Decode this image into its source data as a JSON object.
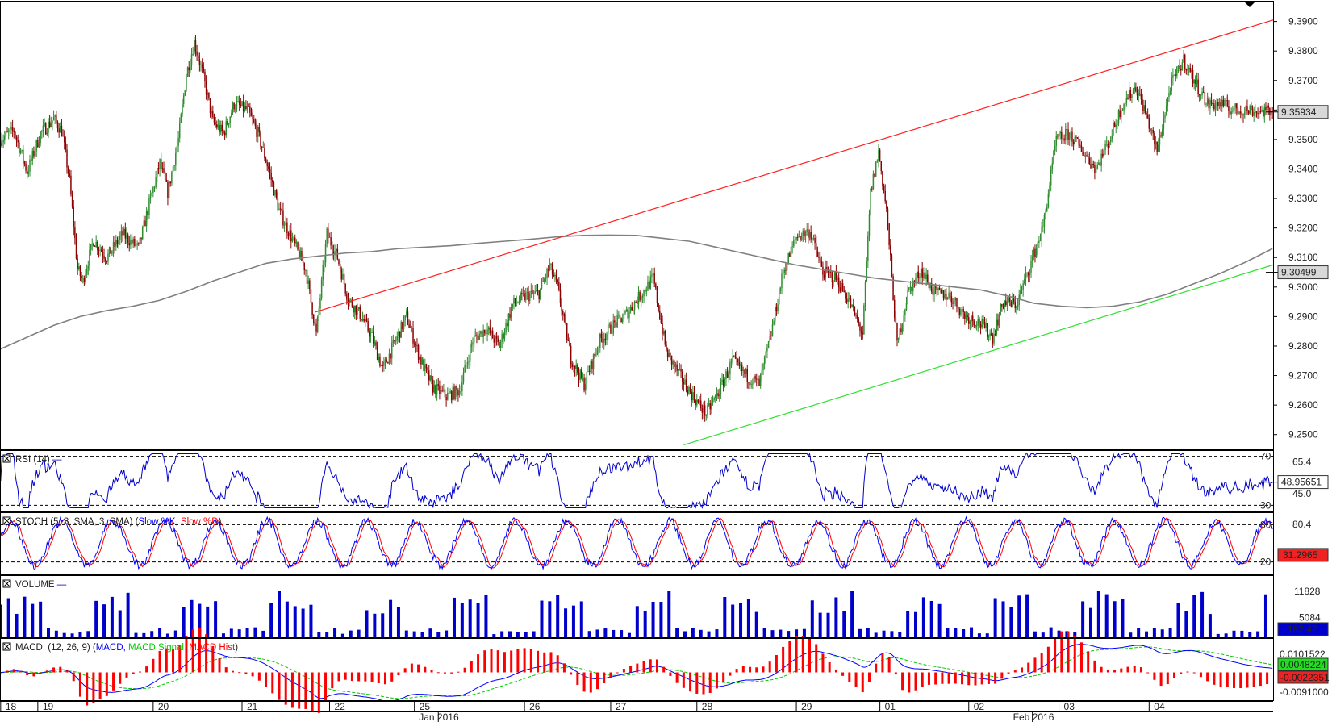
{
  "chart_data": [
    {
      "type": "candlestick",
      "panel": "price",
      "ylim": [
        9.245,
        9.397
      ],
      "y_ticks": [
        "9.3900",
        "9.3800",
        "9.3700",
        "9.3600",
        "9.3500",
        "9.3400",
        "9.3300",
        "9.3200",
        "9.3100",
        "9.3000",
        "9.2900",
        "9.2800",
        "9.2700",
        "9.2600",
        "9.2500"
      ],
      "last_price_label": "9.35934",
      "last_price": 9.35934,
      "ma_label": "9.30499",
      "ma_value": 9.30499,
      "ma_series": [
        [
          0,
          9.279
        ],
        [
          20,
          9.283
        ],
        [
          40,
          9.287
        ],
        [
          60,
          9.29
        ],
        [
          80,
          9.292
        ],
        [
          100,
          9.2935
        ],
        [
          120,
          9.2955
        ],
        [
          140,
          9.2985
        ],
        [
          160,
          9.302
        ],
        [
          180,
          9.305
        ],
        [
          200,
          9.308
        ],
        [
          220,
          9.3095
        ],
        [
          240,
          9.3105
        ],
        [
          260,
          9.3115
        ],
        [
          280,
          9.312
        ],
        [
          300,
          9.313
        ],
        [
          320,
          9.3135
        ],
        [
          340,
          9.314
        ],
        [
          360,
          9.3148
        ],
        [
          380,
          9.3155
        ],
        [
          400,
          9.3162
        ],
        [
          420,
          9.317
        ],
        [
          440,
          9.3175
        ],
        [
          460,
          9.3176
        ],
        [
          480,
          9.3175
        ],
        [
          500,
          9.3165
        ],
        [
          520,
          9.3155
        ],
        [
          540,
          9.3135
        ],
        [
          560,
          9.3115
        ],
        [
          580,
          9.3095
        ],
        [
          600,
          9.3075
        ],
        [
          620,
          9.306
        ],
        [
          640,
          9.3045
        ],
        [
          660,
          9.303
        ],
        [
          680,
          9.302
        ],
        [
          700,
          9.301
        ],
        [
          720,
          9.3
        ],
        [
          740,
          9.299
        ],
        [
          760,
          9.297
        ],
        [
          780,
          9.2945
        ],
        [
          800,
          9.2935
        ],
        [
          820,
          9.293
        ],
        [
          840,
          9.2935
        ],
        [
          860,
          9.295
        ],
        [
          880,
          9.2975
        ],
        [
          900,
          9.301
        ],
        [
          920,
          9.3045
        ],
        [
          940,
          9.3085
        ],
        [
          960,
          9.313
        ]
      ],
      "resistance_line": [
        [
          237,
          9.2915
        ],
        [
          960,
          9.3905
        ]
      ],
      "support_line": [
        [
          515,
          9.2465
        ],
        [
          960,
          9.3075
        ]
      ],
      "n_bars": 960,
      "random_seed": 7
    },
    {
      "type": "line",
      "panel": "RSI",
      "title": "RSI (14)",
      "series_name": "—",
      "levels": [
        70,
        30
      ],
      "level_labels": [
        "70",
        "30"
      ],
      "tick_labels": [
        "65.4",
        "45.0"
      ],
      "current_label": "48.95651",
      "ylim": [
        25,
        75
      ]
    },
    {
      "type": "line",
      "panel": "STOCH",
      "title": "STOCH (5, 3, SMA, 3, SMA)",
      "legend": [
        "Slow %K",
        "Slow %D"
      ],
      "levels": [
        80,
        20
      ],
      "level_labels": [
        "80",
        "20"
      ],
      "tick_labels": [
        "80.4"
      ],
      "current_label": "31.2965",
      "ylim": [
        0,
        100
      ]
    },
    {
      "type": "bar",
      "panel": "VOLUME",
      "title": "VOLUME",
      "tick_labels": [
        "11828",
        "5084"
      ],
      "current_label": "182.42",
      "ylim": [
        0,
        16000
      ]
    },
    {
      "type": "line",
      "panel": "MACD",
      "title": "MACD: (12, 26, 9)",
      "legend": [
        "MACD",
        "MACD Signal",
        "MACD Hist"
      ],
      "tick_labels": [
        "0.0101522",
        "-0.0091000"
      ],
      "current_labels": [
        "0.0048224",
        "-0.0022351"
      ]
    }
  ],
  "x_axis": {
    "day_labels": [
      "18",
      "19",
      "20",
      "21",
      "22",
      "25",
      "26",
      "27",
      "28",
      "29",
      "01",
      "02",
      "03",
      "04"
    ],
    "day_positions": [
      0,
      28,
      115,
      182,
      248,
      312,
      395,
      460,
      525,
      600,
      663,
      730,
      798,
      866
    ],
    "month_labels": [
      {
        "text": "Jan 2016",
        "pos": 330
      },
      {
        "text": "Feb 2016",
        "pos": 778
      }
    ]
  },
  "colors": {
    "bull": "#2e8b2e",
    "bear": "#8b0000",
    "ma": "#808080",
    "resistance": "#ff2020",
    "support": "#30e030",
    "rsi": "#0000cc",
    "stoch_k": "#0000ff",
    "stoch_d": "#ff0000",
    "volume": "#0000cc",
    "macd": "#0000ff",
    "macd_signal": "#00cc00",
    "macd_hist": "#ff0000"
  }
}
